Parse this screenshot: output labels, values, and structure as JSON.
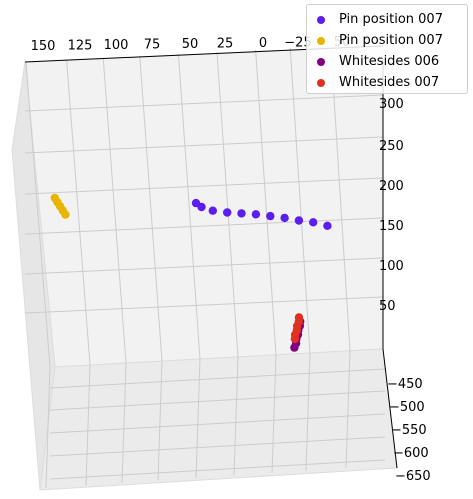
{
  "chart_data": {
    "type": "scatter",
    "projection": "3d",
    "grid": true,
    "legend_placement": "top-right",
    "axis_a_ticks": [
      "150",
      "125",
      "100",
      "75",
      "50",
      "25",
      "0",
      "−25",
      "50"
    ],
    "axis_b_ticks": [
      "300",
      "250",
      "200",
      "150",
      "100",
      "50"
    ],
    "axis_c_ticks": [
      "−450",
      "−500",
      "−550",
      "−600",
      "−650"
    ],
    "series": [
      {
        "name": "Pin position 007",
        "color": "#5b1df0",
        "points": [
          [
            -40,
            150,
            -470
          ],
          [
            -30,
            155,
            -470
          ],
          [
            -20,
            158,
            -470
          ],
          [
            -10,
            162,
            -470
          ],
          [
            0,
            165,
            -470
          ],
          [
            10,
            168,
            -470
          ],
          [
            20,
            170,
            -470
          ],
          [
            30,
            172,
            -470
          ],
          [
            40,
            175,
            -470
          ],
          [
            48,
            180,
            -470
          ],
          [
            52,
            185,
            -470
          ]
        ]
      },
      {
        "name": "Pin position 007",
        "color": "#e8b400",
        "points": [
          [
            150,
            200,
            -470
          ],
          [
            148,
            195,
            -470
          ],
          [
            146,
            190,
            -470
          ],
          [
            144,
            185,
            -470
          ],
          [
            142,
            180,
            -470
          ]
        ]
      },
      {
        "name": "Whitesides 006",
        "color": "#800080",
        "points": [
          [
            -25,
            40,
            -470
          ],
          [
            -25,
            35,
            -470
          ],
          [
            -24,
            30,
            -470
          ],
          [
            -24,
            25,
            -470
          ],
          [
            -23,
            20,
            -470
          ],
          [
            -23,
            15,
            -470
          ],
          [
            -22,
            10,
            -470
          ]
        ]
      },
      {
        "name": "Whitesides 007",
        "color": "#e03020",
        "points": [
          [
            -24,
            45,
            -470
          ],
          [
            -24,
            40,
            -470
          ],
          [
            -23,
            35,
            -470
          ],
          [
            -23,
            30,
            -470
          ],
          [
            -22,
            25,
            -470
          ],
          [
            -22,
            20,
            -470
          ]
        ]
      }
    ]
  }
}
